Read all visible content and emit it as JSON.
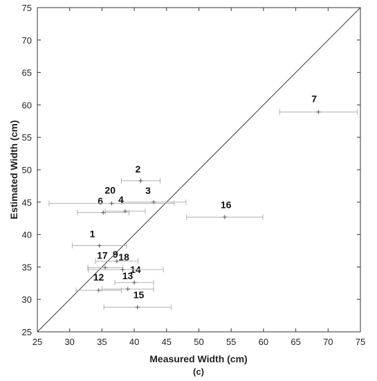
{
  "chart_data": {
    "type": "scatter",
    "title": "",
    "xlabel": "Measured Width (cm)",
    "ylabel": "Estimated Width (cm)",
    "caption": "(c)",
    "xlim": [
      25,
      75
    ],
    "ylim": [
      25,
      75
    ],
    "xticks": [
      25,
      30,
      35,
      40,
      45,
      50,
      55,
      60,
      65,
      70,
      75
    ],
    "yticks": [
      25,
      30,
      35,
      40,
      45,
      50,
      55,
      60,
      65,
      70,
      75
    ],
    "identity_line": true,
    "grid": false,
    "points": [
      {
        "label": "1",
        "x": 34.6,
        "y": 38.3,
        "xerr": [
          30.4,
          38.8
        ]
      },
      {
        "label": "2",
        "x": 41.0,
        "y": 48.3,
        "xerr": [
          38.0,
          44.0
        ]
      },
      {
        "label": "3",
        "x": 43.0,
        "y": 45.0,
        "xerr": [
          38.0,
          48.0
        ]
      },
      {
        "label": "4",
        "x": 38.6,
        "y": 43.6,
        "xerr": [
          35.5,
          41.7
        ]
      },
      {
        "label": "6",
        "x": 35.2,
        "y": 43.4,
        "xerr": [
          31.2,
          39.2
        ]
      },
      {
        "label": "7",
        "x": 68.5,
        "y": 58.9,
        "xerr": [
          62.5,
          74.5
        ]
      },
      {
        "label": "9",
        "x": 37.3,
        "y": 35.9,
        "xerr": [
          34.0,
          40.6
        ]
      },
      {
        "label": "12",
        "x": 34.5,
        "y": 31.4,
        "xerr": [
          31.0,
          38.0
        ]
      },
      {
        "label": "13",
        "x": 39.0,
        "y": 31.6,
        "xerr": [
          35.0,
          43.0
        ]
      },
      {
        "label": "14",
        "x": 40.0,
        "y": 32.6,
        "xerr": [
          37.0,
          43.0
        ]
      },
      {
        "label": "15",
        "x": 40.5,
        "y": 28.8,
        "xerr": [
          35.3,
          45.7
        ]
      },
      {
        "label": "16",
        "x": 54.0,
        "y": 42.7,
        "xerr": [
          48.1,
          59.9
        ]
      },
      {
        "label": "17",
        "x": 35.5,
        "y": 34.9,
        "xerr": [
          32.8,
          38.2
        ]
      },
      {
        "label": "18",
        "x": 38.2,
        "y": 34.6,
        "xerr": [
          32.9,
          44.5
        ]
      },
      {
        "label": "20",
        "x": 36.5,
        "y": 44.8,
        "xerr": [
          26.8,
          46.2
        ]
      }
    ]
  }
}
